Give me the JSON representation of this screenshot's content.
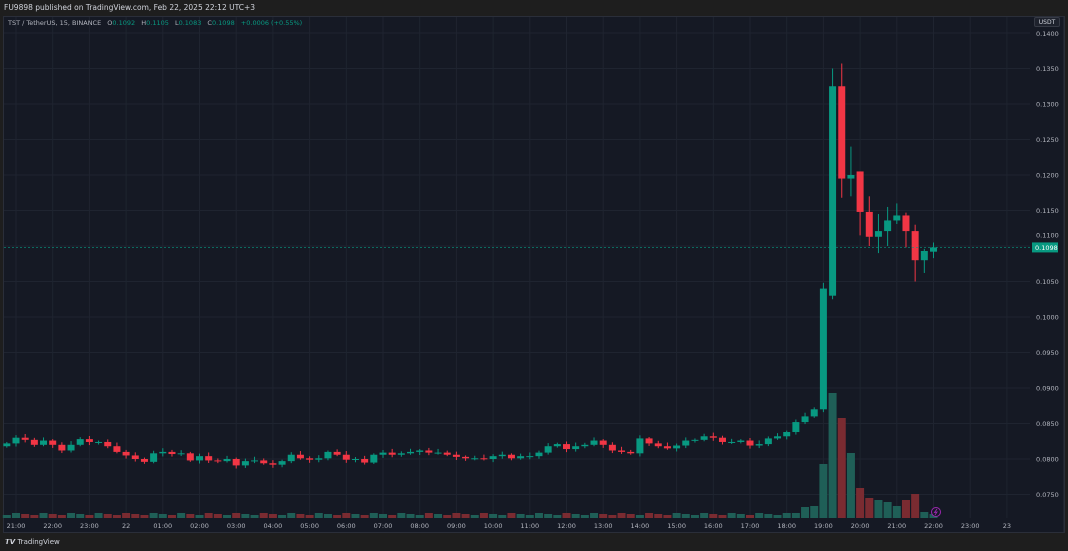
{
  "header": {
    "published": "FU9898 published on TradingView.com, Feb 22, 2025 22:12 UTC+3"
  },
  "legend": {
    "symbol": "TST / TetherUS, 15, BINANCE",
    "open_label": "O",
    "open": "0.1092",
    "high_label": "H",
    "high": "0.1105",
    "low_label": "L",
    "low": "0.1083",
    "close_label": "C",
    "close": "0.1098",
    "change": "+0.0006 (+0.55%)"
  },
  "currency_badge": "USDT",
  "last_price_label": "0.1098",
  "footer": {
    "brand": "TradingView",
    "logo_icon": "tradingview-logo-icon"
  },
  "colors": {
    "up": "#089981",
    "down": "#f23645",
    "background": "#151924",
    "vol_up": "#1f5f57",
    "vol_down": "#7a2b31",
    "event_marker": "#9c27b0"
  },
  "chart_data": {
    "type": "candlestick",
    "interval": "15",
    "ylim": [
      0.0725,
      0.141
    ],
    "y_ticks": [
      "0.1400",
      "0.1350",
      "0.1300",
      "0.1250",
      "0.1200",
      "0.1150",
      "0.1100",
      "0.1050",
      "0.1000",
      "0.0950",
      "0.0900",
      "0.0850",
      "0.0800",
      "0.0750"
    ],
    "x_ticks": [
      "21:00",
      "22:00",
      "23:00",
      "22",
      "01:00",
      "02:00",
      "03:00",
      "04:00",
      "05:00",
      "06:00",
      "07:00",
      "08:00",
      "09:00",
      "10:00",
      "11:00",
      "12:00",
      "13:00",
      "14:00",
      "15:00",
      "16:00",
      "17:00",
      "18:00",
      "19:00",
      "20:00",
      "21:00",
      "22:00",
      "23:00",
      "23"
    ],
    "grid": true,
    "last_price": 0.1098,
    "first_candle_time": "20:45",
    "closes_pre_spike": [
      0.0822,
      0.083,
      0.0827,
      0.082,
      0.0826,
      0.082,
      0.0812,
      0.082,
      0.0828,
      0.0824,
      0.0824,
      0.0818,
      0.081,
      0.0805,
      0.08,
      0.0796,
      0.0808,
      0.081,
      0.0807,
      0.0808,
      0.0798,
      0.0804,
      0.0798,
      0.0797,
      0.08,
      0.0791,
      0.0797,
      0.0798,
      0.0794,
      0.0792,
      0.0797,
      0.0806,
      0.0801,
      0.0799,
      0.0801,
      0.081,
      0.0806,
      0.0799,
      0.08,
      0.0795,
      0.0806,
      0.0809,
      0.0806,
      0.0808,
      0.081,
      0.0812,
      0.0809,
      0.0809,
      0.0806,
      0.0803,
      0.0801,
      0.0801,
      0.08,
      0.0804,
      0.0806,
      0.0801,
      0.0804,
      0.0804,
      0.0809,
      0.0818,
      0.0821,
      0.0814,
      0.0818,
      0.082,
      0.0826,
      0.082,
      0.0812,
      0.081,
      0.0808,
      0.0829,
      0.0822,
      0.0818,
      0.0815,
      0.0819,
      0.0826,
      0.0827,
      0.0832,
      0.083,
      0.0824,
      0.0824,
      0.0826,
      0.0819,
      0.0821,
      0.0829,
      0.0832,
      0.0838,
      0.0852,
      0.086,
      0.087
    ],
    "ohlc_spike": [
      [
        0.087,
        0.1048,
        0.0866,
        0.104
      ],
      [
        0.103,
        0.135,
        0.1025,
        0.1325
      ],
      [
        0.1325,
        0.1357,
        0.1168,
        0.1195
      ],
      [
        0.1195,
        0.124,
        0.117,
        0.12
      ],
      [
        0.1205,
        0.1205,
        0.1115,
        0.1148
      ],
      [
        0.1148,
        0.117,
        0.11,
        0.1113
      ],
      [
        0.1113,
        0.1145,
        0.109,
        0.1121
      ],
      [
        0.1121,
        0.1155,
        0.11,
        0.1136
      ],
      [
        0.1136,
        0.116,
        0.1131,
        0.1143
      ],
      [
        0.1143,
        0.1147,
        0.1098,
        0.1121
      ],
      [
        0.1121,
        0.113,
        0.105,
        0.108
      ],
      [
        0.108,
        0.1096,
        0.1062,
        0.1093
      ],
      [
        0.1092,
        0.1105,
        0.1083,
        0.1098
      ]
    ],
    "volume_pre_spike_base": 3,
    "volume_tail": [
      5,
      11,
      12,
      54,
      125,
      100,
      65,
      30,
      20,
      18,
      16,
      12,
      18,
      24,
      6,
      4
    ]
  }
}
